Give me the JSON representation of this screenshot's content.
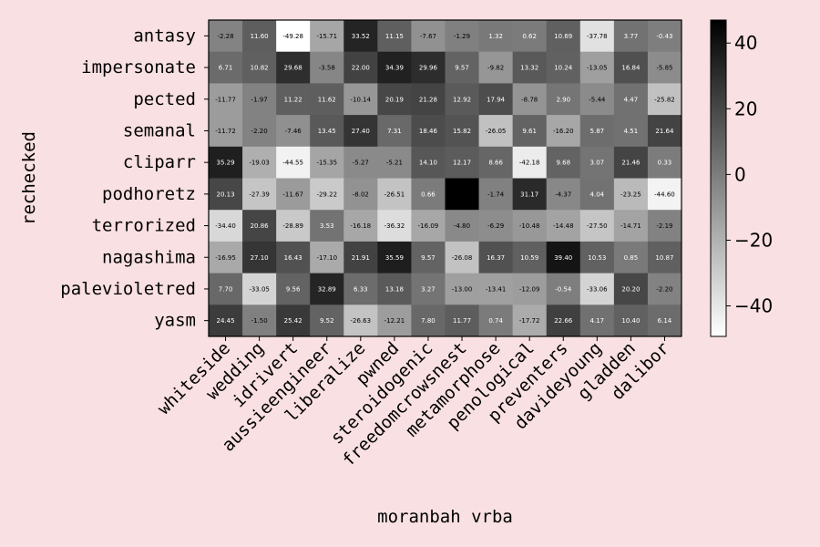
{
  "chart_data": {
    "type": "heatmap",
    "xlabel": "moranbah vrba",
    "ylabel": "rechecked",
    "x_categories": [
      "whiteside",
      "wedding",
      "idrivert",
      "aussieengineer",
      "liberalize",
      "pwned",
      "steroidogenic",
      "freedomcrowsnest",
      "metamorphose",
      "penological",
      "preventers",
      "davideyoung",
      "gladden",
      "dalibor"
    ],
    "y_categories": [
      "antasy",
      "impersonate",
      "pected",
      "semanal",
      "cliparr",
      "podhoretz",
      "terrorized",
      "nagashima",
      "palevioletred",
      "yasm"
    ],
    "values": [
      [
        -2.28,
        11.6,
        -49.28,
        -15.71,
        33.52,
        11.15,
        -7.67,
        -1.29,
        1.32,
        0.62,
        10.69,
        -37.78,
        3.77,
        -0.43
      ],
      [
        6.71,
        10.82,
        29.68,
        -3.58,
        22.0,
        34.39,
        29.96,
        9.57,
        -9.82,
        13.32,
        10.24,
        -13.05,
        16.84,
        -5.85
      ],
      [
        -11.77,
        -1.97,
        11.22,
        11.62,
        -10.14,
        20.19,
        21.28,
        12.92,
        17.94,
        -8.78,
        2.9,
        -5.44,
        4.47,
        -25.82
      ],
      [
        -11.72,
        -2.2,
        -7.46,
        13.45,
        27.4,
        7.31,
        18.46,
        15.82,
        -26.05,
        9.61,
        -16.2,
        5.87,
        4.51,
        21.64
      ],
      [
        35.29,
        -19.03,
        -44.55,
        -15.35,
        -5.27,
        -5.21,
        14.1,
        12.17,
        8.66,
        -42.18,
        9.68,
        3.07,
        21.46,
        0.33
      ],
      [
        20.13,
        -27.39,
        -11.67,
        -29.22,
        -8.02,
        -26.51,
        0.66,
        47.0,
        -1.74,
        31.17,
        -4.37,
        4.04,
        -23.25,
        -44.6
      ],
      [
        -34.4,
        20.86,
        -28.89,
        3.53,
        -16.18,
        -36.32,
        -16.09,
        -4.8,
        -6.29,
        -10.48,
        -14.48,
        -27.5,
        -14.71,
        -2.19
      ],
      [
        -16.95,
        27.1,
        16.43,
        -17.1,
        21.91,
        35.59,
        9.57,
        -26.08,
        16.37,
        10.59,
        39.4,
        10.53,
        0.85,
        10.87
      ],
      [
        7.7,
        -33.05,
        9.56,
        32.89,
        6.33,
        13.18,
        3.27,
        -13.0,
        -13.41,
        -12.09,
        -0.54,
        -33.06,
        20.2,
        -2.2
      ],
      [
        24.45,
        -1.5,
        25.42,
        9.52,
        -26.63,
        -12.21,
        7.8,
        11.77,
        0.74,
        -17.72,
        22.66,
        4.17,
        10.4,
        6.14
      ]
    ],
    "value_labels": [
      [
        "-2.28",
        "11.60",
        "-49.28",
        "-15.71",
        "33.52",
        "11.15",
        "-7.67",
        "-1.29",
        "1.32",
        "0.62",
        "10.69",
        "-37.78",
        "3.77",
        "-0.43"
      ],
      [
        "6.71",
        "10.82",
        "29.68",
        "-3.58",
        "22.00",
        "34.39",
        "29.96",
        "9.57",
        "-9.82",
        "13.32",
        "10.24",
        "-13.05",
        "16.84",
        "-5.85"
      ],
      [
        "-11.77",
        "-1.97",
        "11.22",
        "11.62",
        "-10.14",
        "20.19",
        "21.28",
        "12.92",
        "17.94",
        "-8.78",
        "2.90",
        "-5.44",
        "4.47",
        "-25.82"
      ],
      [
        "-11.72",
        "-2.20",
        "-7.46",
        "13.45",
        "27.40",
        "7.31",
        "18.46",
        "15.82",
        "-26.05",
        "9.61",
        "-16.20",
        "5.87",
        "4.51",
        "21.64"
      ],
      [
        "35.29",
        "-19.03",
        "-44.55",
        "-15.35",
        "-5.27",
        "-5.21",
        "14.10",
        "12.17",
        "8.66",
        "-42.18",
        "9.68",
        "3.07",
        "21.46",
        "0.33"
      ],
      [
        "20.13",
        "-27.39",
        "-11.67",
        "-29.22",
        "-8.02",
        "-26.51",
        "0.66",
        "",
        "-1.74",
        "31.17",
        "-4.37",
        "4.04",
        "-23.25",
        "-44.60"
      ],
      [
        "-34.40",
        "20.86",
        "-28.89",
        "3.53",
        "-16.18",
        "-36.32",
        "-16.09",
        "-4.80",
        "-6.29",
        "-10.48",
        "-14.48",
        "-27.50",
        "-14.71",
        "-2.19"
      ],
      [
        "-16.95",
        "27.10",
        "16.43",
        "-17.10",
        "21.91",
        "35.59",
        "9.57",
        "-26.08",
        "16.37",
        "10.59",
        "39.40",
        "10.53",
        "0.85",
        "10.87"
      ],
      [
        "7.70",
        "-33.05",
        "9.56",
        "32.89",
        "6.33",
        "13.18",
        "3.27",
        "-13.00",
        "-13.41",
        "-12.09",
        "-0.54",
        "-33.06",
        "20.20",
        "-2.20"
      ],
      [
        "24.45",
        "-1.50",
        "25.42",
        "9.52",
        "-26.63",
        "-12.21",
        "7.80",
        "11.77",
        "0.74",
        "-17.72",
        "22.66",
        "4.17",
        "10.40",
        "6.14"
      ]
    ],
    "colormap": "gray_r",
    "vmin": -49.28,
    "vmax": 47.0,
    "colorbar_ticks": [
      40,
      20,
      0,
      -20,
      -40
    ],
    "colorbar_tick_labels": [
      "40",
      "20",
      "0",
      "−20",
      "−40"
    ],
    "grid": false,
    "background_color": "#f9e0e2"
  }
}
